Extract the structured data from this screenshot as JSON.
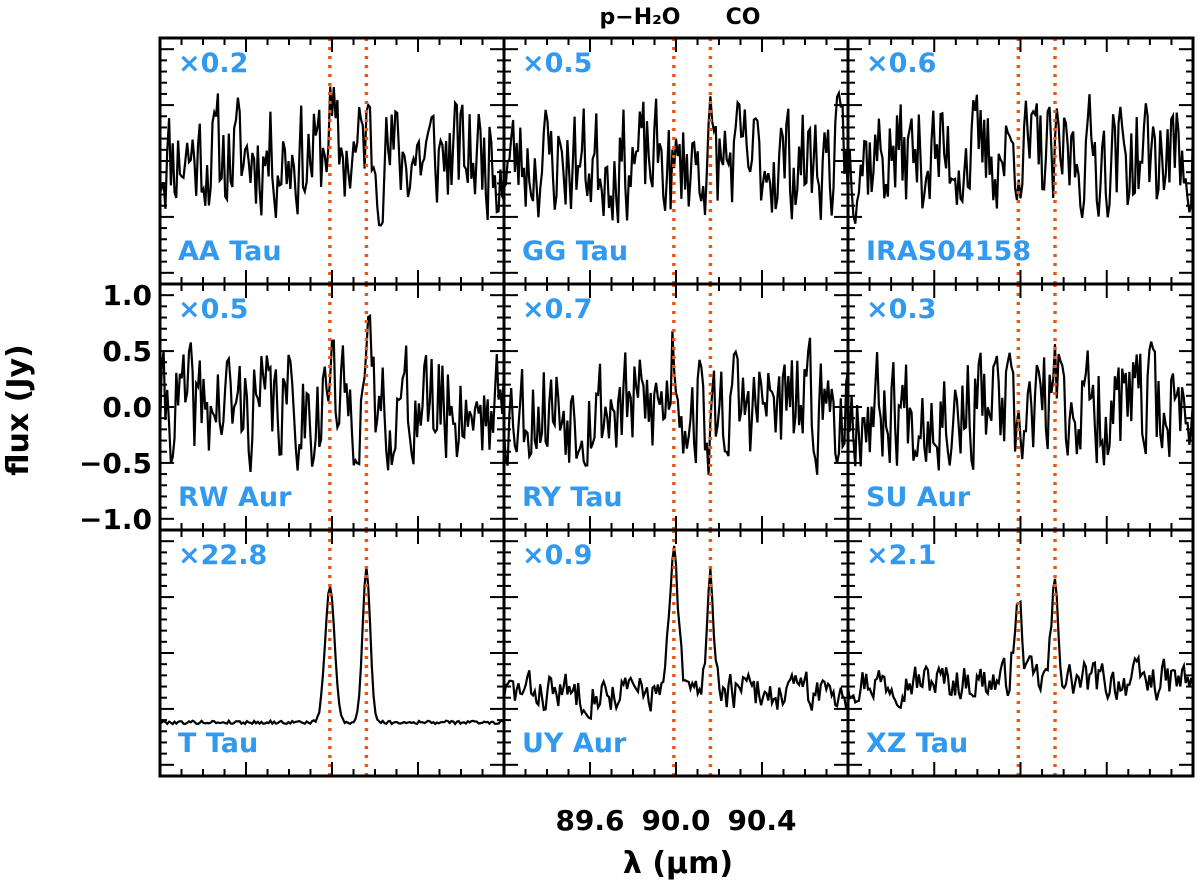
{
  "chart_data": {
    "type": "line",
    "layout": "3x3 grid of spectra",
    "xlabel": "λ (μm)",
    "ylabel": "flux (Jy)",
    "xlim": [
      89.2,
      90.8
    ],
    "ylim": [
      -1.1,
      1.1
    ],
    "x_ticks": [
      89.6,
      90.0,
      90.4
    ],
    "x_tick_labels": [
      "89.6",
      "90.0",
      "90.4"
    ],
    "y_ticks": [
      1.0,
      0.5,
      0.0,
      -0.5,
      -1.0
    ],
    "y_tick_labels": [
      "1.0",
      "0.5",
      "0.0",
      "−0.5",
      "−1.0"
    ],
    "line_markers": [
      {
        "label": "p−H₂O",
        "wavelength": 89.99,
        "color": "#ee5511"
      },
      {
        "label": "CO",
        "wavelength": 90.16,
        "color": "#ee5511"
      }
    ],
    "panels": [
      {
        "name": "AA Tau",
        "scale": "×0.2",
        "seed": 11,
        "kind": "noise",
        "h2o": 0.55,
        "co": 0.4,
        "base": 0.05
      },
      {
        "name": "GG Tau",
        "scale": "×0.5",
        "seed": 23,
        "kind": "noise",
        "h2o": -0.35,
        "co": 0.15,
        "base": 0.0
      },
      {
        "name": "IRAS04158",
        "scale": "×0.6",
        "seed": 37,
        "kind": "noise",
        "h2o": 0.25,
        "co": -0.3,
        "base": 0.05
      },
      {
        "name": "RW Aur",
        "scale": "×0.5",
        "seed": 41,
        "kind": "noise",
        "h2o": 0.55,
        "co": 0.65,
        "base": 0.0
      },
      {
        "name": "RY Tau",
        "scale": "×0.7",
        "seed": 53,
        "kind": "noise",
        "h2o": 0.95,
        "co": -0.5,
        "base": 0.0
      },
      {
        "name": "SU Aur",
        "scale": "×0.3",
        "seed": 67,
        "kind": "noise",
        "h2o": -0.95,
        "co": 0.4,
        "base": 0.0
      },
      {
        "name": "T Tau",
        "scale": "×22.8",
        "seed": 79,
        "kind": "peaks",
        "h2o": 0.35,
        "co": 0.48,
        "base": -0.62
      },
      {
        "name": "UY Aur",
        "scale": "×0.9",
        "seed": 83,
        "kind": "peaks-noisy",
        "h2o": 0.85,
        "co": 0.7,
        "base": -0.35
      },
      {
        "name": "XZ Tau",
        "scale": "×2.1",
        "seed": 97,
        "kind": "peaks-noisy",
        "h2o": 0.4,
        "co": 0.55,
        "base": -0.25
      }
    ]
  },
  "labels": {
    "h2o_line": "p−H₂O",
    "co_line": "CO",
    "xlabel": "λ (μm)",
    "ylabel": "flux (Jy)"
  }
}
